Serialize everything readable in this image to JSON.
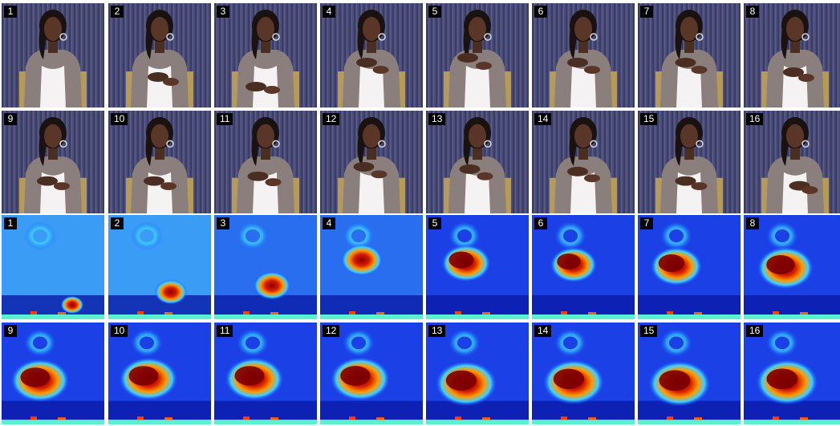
{
  "figure": {
    "video_frames": {
      "labels": [
        "1",
        "2",
        "3",
        "4",
        "5",
        "6",
        "7",
        "8",
        "9",
        "10",
        "11",
        "12",
        "13",
        "14",
        "15",
        "16"
      ]
    },
    "heatmap_frames": {
      "labels": [
        "1",
        "2",
        "3",
        "4",
        "5",
        "6",
        "7",
        "8",
        "9",
        "10",
        "11",
        "12",
        "13",
        "14",
        "15",
        "16"
      ]
    }
  }
}
